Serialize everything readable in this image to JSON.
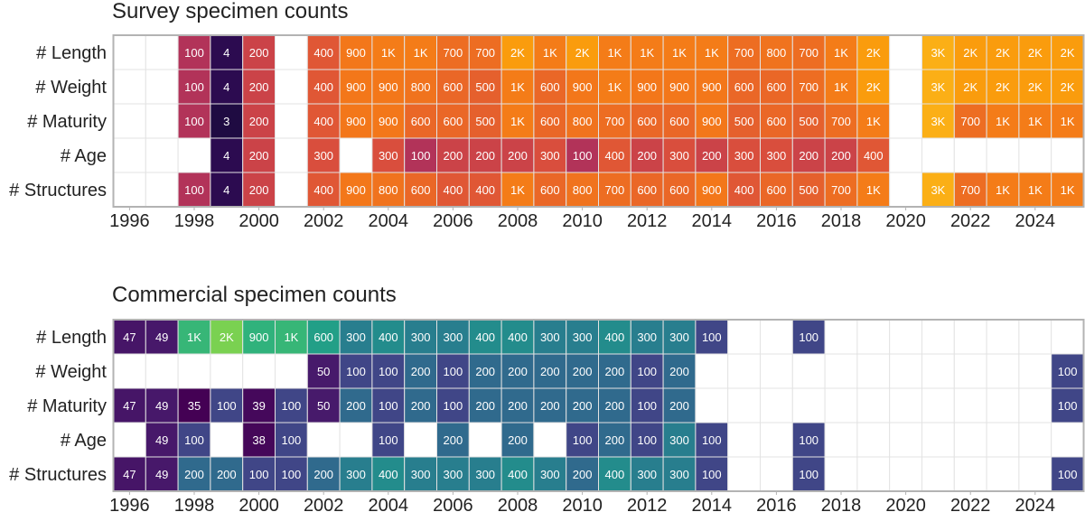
{
  "chart_data": [
    {
      "type": "heatmap",
      "title": "Survey specimen counts",
      "rows": [
        "# Length",
        "# Weight",
        "# Maturity",
        "# Age",
        "# Structures"
      ],
      "years": [
        1996,
        1997,
        1998,
        1999,
        2000,
        2001,
        2002,
        2003,
        2004,
        2005,
        2006,
        2007,
        2008,
        2009,
        2010,
        2011,
        2012,
        2013,
        2014,
        2015,
        2016,
        2017,
        2018,
        2019,
        2020,
        2021,
        2022,
        2023,
        2024,
        2025
      ],
      "x_ticks": [
        1996,
        1998,
        2000,
        2002,
        2004,
        2006,
        2008,
        2010,
        2012,
        2014,
        2016,
        2018,
        2020,
        2022,
        2024
      ],
      "palette": "inferno",
      "cells": [
        [
          null,
          null,
          100,
          4,
          200,
          null,
          400,
          900,
          1000,
          1000,
          700,
          700,
          2000,
          1000,
          2000,
          1000,
          1000,
          1000,
          1000,
          700,
          800,
          700,
          1000,
          2000,
          null,
          3000,
          2000,
          2000,
          2000,
          2000
        ],
        [
          null,
          null,
          100,
          4,
          200,
          null,
          400,
          900,
          900,
          800,
          600,
          500,
          1000,
          600,
          900,
          1000,
          900,
          900,
          900,
          600,
          600,
          700,
          1000,
          2000,
          null,
          3000,
          2000,
          2000,
          2000,
          2000
        ],
        [
          null,
          null,
          100,
          3,
          200,
          null,
          400,
          900,
          900,
          600,
          600,
          500,
          1000,
          600,
          800,
          700,
          600,
          600,
          900,
          500,
          600,
          500,
          700,
          1000,
          null,
          3000,
          700,
          1000,
          1000,
          1000
        ],
        [
          null,
          null,
          null,
          4,
          200,
          null,
          300,
          null,
          300,
          100,
          200,
          200,
          200,
          300,
          100,
          400,
          200,
          300,
          200,
          300,
          300,
          200,
          200,
          400,
          null,
          null,
          null,
          null,
          null,
          null
        ],
        [
          null,
          null,
          100,
          4,
          200,
          null,
          400,
          900,
          800,
          600,
          400,
          400,
          1000,
          600,
          800,
          700,
          600,
          600,
          900,
          400,
          600,
          500,
          700,
          1000,
          null,
          3000,
          700,
          1000,
          1000,
          1000
        ]
      ],
      "labels": [
        [
          "",
          "",
          "100",
          "4",
          "200",
          "",
          "400",
          "900",
          "1K",
          "1K",
          "700",
          "700",
          "2K",
          "1K",
          "2K",
          "1K",
          "1K",
          "1K",
          "1K",
          "700",
          "800",
          "700",
          "1K",
          "2K",
          "",
          "3K",
          "2K",
          "2K",
          "2K",
          "2K"
        ],
        [
          "",
          "",
          "100",
          "4",
          "200",
          "",
          "400",
          "900",
          "900",
          "800",
          "600",
          "500",
          "1K",
          "600",
          "900",
          "1K",
          "900",
          "900",
          "900",
          "600",
          "600",
          "700",
          "1K",
          "2K",
          "",
          "3K",
          "2K",
          "2K",
          "2K",
          "2K"
        ],
        [
          "",
          "",
          "100",
          "3",
          "200",
          "",
          "400",
          "900",
          "900",
          "600",
          "600",
          "500",
          "1K",
          "600",
          "800",
          "700",
          "600",
          "600",
          "900",
          "500",
          "600",
          "500",
          "700",
          "1K",
          "",
          "3K",
          "700",
          "1K",
          "1K",
          "1K"
        ],
        [
          "",
          "",
          "",
          "4",
          "200",
          "",
          "300",
          "",
          "300",
          "100",
          "200",
          "200",
          "200",
          "300",
          "100",
          "400",
          "200",
          "300",
          "200",
          "300",
          "300",
          "200",
          "200",
          "400",
          "",
          "",
          "",
          "",
          "",
          ""
        ],
        [
          "",
          "",
          "100",
          "4",
          "200",
          "",
          "400",
          "900",
          "800",
          "600",
          "400",
          "400",
          "1K",
          "600",
          "800",
          "700",
          "600",
          "600",
          "900",
          "400",
          "600",
          "500",
          "700",
          "1K",
          "",
          "3K",
          "700",
          "1K",
          "1K",
          "1K"
        ]
      ]
    },
    {
      "type": "heatmap",
      "title": "Commercial specimen counts",
      "rows": [
        "# Length",
        "# Weight",
        "# Maturity",
        "# Age",
        "# Structures"
      ],
      "years": [
        1996,
        1997,
        1998,
        1999,
        2000,
        2001,
        2002,
        2003,
        2004,
        2005,
        2006,
        2007,
        2008,
        2009,
        2010,
        2011,
        2012,
        2013,
        2014,
        2015,
        2016,
        2017,
        2018,
        2019,
        2020,
        2021,
        2022,
        2023,
        2024,
        2025
      ],
      "x_ticks": [
        1996,
        1998,
        2000,
        2002,
        2004,
        2006,
        2008,
        2010,
        2012,
        2014,
        2016,
        2018,
        2020,
        2022,
        2024
      ],
      "palette": "viridis",
      "cells": [
        [
          47,
          49,
          1000,
          2000,
          900,
          1000,
          600,
          300,
          400,
          300,
          300,
          400,
          400,
          300,
          300,
          400,
          300,
          300,
          100,
          null,
          null,
          100,
          null,
          null,
          null,
          null,
          null,
          null,
          null,
          null
        ],
        [
          null,
          null,
          null,
          null,
          null,
          null,
          50,
          100,
          100,
          200,
          100,
          200,
          200,
          200,
          200,
          200,
          100,
          200,
          null,
          null,
          null,
          null,
          null,
          null,
          null,
          null,
          null,
          null,
          null,
          100
        ],
        [
          47,
          49,
          35,
          100,
          39,
          100,
          50,
          200,
          100,
          200,
          100,
          200,
          200,
          200,
          200,
          200,
          100,
          200,
          null,
          null,
          null,
          null,
          null,
          null,
          null,
          null,
          null,
          null,
          null,
          100
        ],
        [
          null,
          49,
          100,
          null,
          38,
          100,
          null,
          null,
          100,
          null,
          200,
          null,
          200,
          null,
          100,
          200,
          100,
          300,
          100,
          null,
          null,
          100,
          null,
          null,
          null,
          null,
          null,
          null,
          null,
          null
        ],
        [
          47,
          49,
          200,
          200,
          100,
          100,
          200,
          300,
          400,
          300,
          300,
          300,
          400,
          300,
          200,
          400,
          300,
          300,
          100,
          null,
          null,
          100,
          null,
          null,
          null,
          null,
          null,
          null,
          null,
          100
        ]
      ],
      "labels": [
        [
          "47",
          "49",
          "1K",
          "2K",
          "900",
          "1K",
          "600",
          "300",
          "400",
          "300",
          "300",
          "400",
          "400",
          "300",
          "300",
          "400",
          "300",
          "300",
          "100",
          "",
          "",
          "100",
          "",
          "",
          "",
          "",
          "",
          "",
          "",
          ""
        ],
        [
          "",
          "",
          "",
          "",
          "",
          "",
          "50",
          "100",
          "100",
          "200",
          "100",
          "200",
          "200",
          "200",
          "200",
          "200",
          "100",
          "200",
          "",
          "",
          "",
          "",
          "",
          "",
          "",
          "",
          "",
          "",
          "",
          "100"
        ],
        [
          "47",
          "49",
          "35",
          "100",
          "39",
          "100",
          "50",
          "200",
          "100",
          "200",
          "100",
          "200",
          "200",
          "200",
          "200",
          "200",
          "100",
          "200",
          "",
          "",
          "",
          "",
          "",
          "",
          "",
          "",
          "",
          "",
          "",
          "100"
        ],
        [
          "",
          "49",
          "100",
          "",
          "38",
          "100",
          "",
          "",
          "100",
          "",
          "200",
          "",
          "200",
          "",
          "100",
          "200",
          "100",
          "300",
          "100",
          "",
          "",
          "100",
          "",
          "",
          "",
          "",
          "",
          "",
          "",
          ""
        ],
        [
          "47",
          "49",
          "200",
          "200",
          "100",
          "100",
          "200",
          "300",
          "400",
          "300",
          "300",
          "300",
          "400",
          "300",
          "200",
          "400",
          "300",
          "300",
          "100",
          "",
          "",
          "100",
          "",
          "",
          "",
          "",
          "",
          "",
          "",
          "100"
        ]
      ]
    }
  ]
}
